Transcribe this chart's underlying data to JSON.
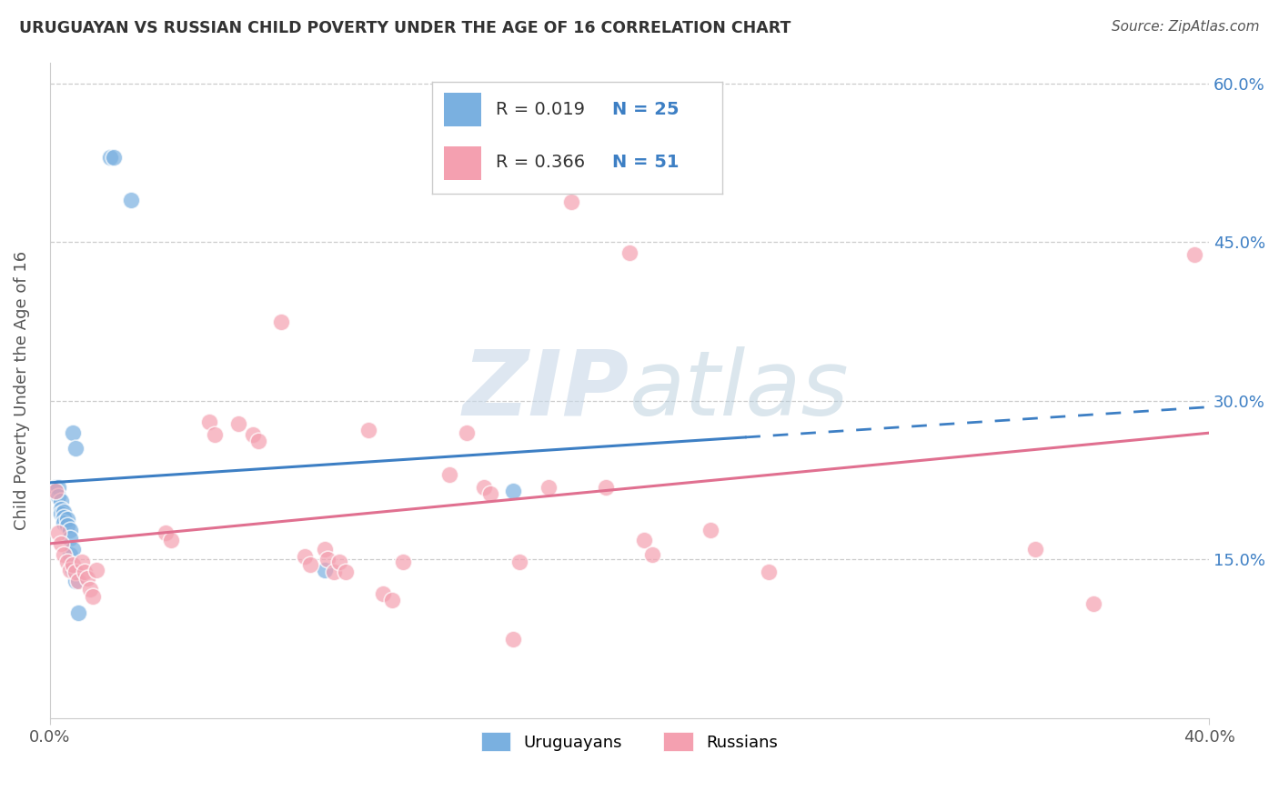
{
  "title": "URUGUAYAN VS RUSSIAN CHILD POVERTY UNDER THE AGE OF 16 CORRELATION CHART",
  "source": "Source: ZipAtlas.com",
  "ylabel": "Child Poverty Under the Age of 16",
  "xlim": [
    0.0,
    0.4
  ],
  "ylim": [
    0.0,
    0.62
  ],
  "yticks": [
    0.15,
    0.3,
    0.45,
    0.6
  ],
  "ytick_labels": [
    "15.0%",
    "30.0%",
    "45.0%",
    "60.0%"
  ],
  "uruguayan_color": "#7ab0e0",
  "russian_color": "#f4a0b0",
  "uruguayan_line_color": "#3d7fc4",
  "russian_line_color": "#e07090",
  "uruguayan_R": 0.019,
  "uruguayan_N": 25,
  "russian_R": 0.366,
  "russian_N": 51,
  "watermark_zip": "ZIP",
  "watermark_atlas": "atlas",
  "uruguayan_points": [
    [
      0.021,
      0.53
    ],
    [
      0.022,
      0.53
    ],
    [
      0.028,
      0.49
    ],
    [
      0.008,
      0.27
    ],
    [
      0.009,
      0.255
    ],
    [
      0.002,
      0.218
    ],
    [
      0.003,
      0.218
    ],
    [
      0.003,
      0.21
    ],
    [
      0.004,
      0.205
    ],
    [
      0.004,
      0.198
    ],
    [
      0.004,
      0.193
    ],
    [
      0.005,
      0.195
    ],
    [
      0.005,
      0.19
    ],
    [
      0.005,
      0.185
    ],
    [
      0.006,
      0.188
    ],
    [
      0.006,
      0.182
    ],
    [
      0.007,
      0.178
    ],
    [
      0.007,
      0.17
    ],
    [
      0.007,
      0.155
    ],
    [
      0.008,
      0.16
    ],
    [
      0.008,
      0.14
    ],
    [
      0.009,
      0.13
    ],
    [
      0.01,
      0.1
    ],
    [
      0.16,
      0.215
    ],
    [
      0.095,
      0.14
    ]
  ],
  "russian_points": [
    [
      0.002,
      0.215
    ],
    [
      0.003,
      0.175
    ],
    [
      0.004,
      0.165
    ],
    [
      0.005,
      0.155
    ],
    [
      0.006,
      0.148
    ],
    [
      0.007,
      0.14
    ],
    [
      0.008,
      0.145
    ],
    [
      0.009,
      0.138
    ],
    [
      0.01,
      0.13
    ],
    [
      0.011,
      0.148
    ],
    [
      0.012,
      0.138
    ],
    [
      0.013,
      0.132
    ],
    [
      0.014,
      0.122
    ],
    [
      0.015,
      0.115
    ],
    [
      0.016,
      0.14
    ],
    [
      0.04,
      0.175
    ],
    [
      0.042,
      0.168
    ],
    [
      0.055,
      0.28
    ],
    [
      0.057,
      0.268
    ],
    [
      0.065,
      0.278
    ],
    [
      0.07,
      0.268
    ],
    [
      0.072,
      0.262
    ],
    [
      0.08,
      0.375
    ],
    [
      0.088,
      0.153
    ],
    [
      0.09,
      0.145
    ],
    [
      0.095,
      0.16
    ],
    [
      0.096,
      0.15
    ],
    [
      0.098,
      0.138
    ],
    [
      0.1,
      0.148
    ],
    [
      0.102,
      0.138
    ],
    [
      0.11,
      0.272
    ],
    [
      0.115,
      0.118
    ],
    [
      0.118,
      0.112
    ],
    [
      0.122,
      0.148
    ],
    [
      0.138,
      0.23
    ],
    [
      0.144,
      0.27
    ],
    [
      0.15,
      0.218
    ],
    [
      0.152,
      0.212
    ],
    [
      0.16,
      0.075
    ],
    [
      0.162,
      0.148
    ],
    [
      0.172,
      0.218
    ],
    [
      0.18,
      0.488
    ],
    [
      0.192,
      0.218
    ],
    [
      0.2,
      0.44
    ],
    [
      0.205,
      0.168
    ],
    [
      0.208,
      0.155
    ],
    [
      0.228,
      0.178
    ],
    [
      0.248,
      0.138
    ],
    [
      0.34,
      0.16
    ],
    [
      0.36,
      0.108
    ],
    [
      0.395,
      0.438
    ]
  ]
}
